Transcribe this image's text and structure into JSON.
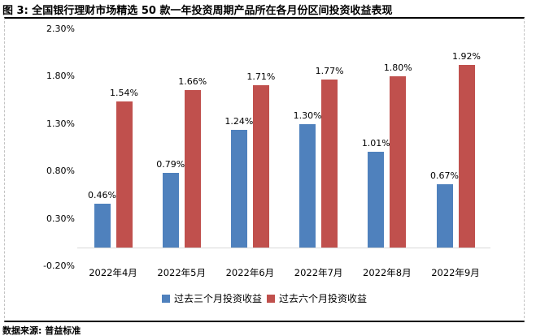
{
  "source": "数据来源: 普益标准",
  "colors": {
    "series_3m": "#4f81bd",
    "series_6m": "#c0504d",
    "baseline": "#d9d9d9",
    "frame_solid": "#000000",
    "frame_dashed": "#c3c3c3"
  },
  "chart_data": {
    "type": "bar",
    "title": "图 3: 全国银行理财市场精选 50 款一年投资周期产品所在各月份区间投资收益表现",
    "categories": [
      "2022年4月",
      "2022年5月",
      "2022年6月",
      "2022年7月",
      "2022年8月",
      "2022年9月"
    ],
    "series": [
      {
        "name": "过去三个月投资收益",
        "color": "#4f81bd",
        "values": [
          0.46,
          0.79,
          1.24,
          1.3,
          1.01,
          0.67
        ],
        "labels": [
          "0.46%",
          "0.79%",
          "1.24%",
          "1.30%",
          "1.01%",
          "0.67%"
        ]
      },
      {
        "name": "过去六个月投资收益",
        "color": "#c0504d",
        "values": [
          1.54,
          1.66,
          1.71,
          1.77,
          1.8,
          1.92
        ],
        "labels": [
          "1.54%",
          "1.66%",
          "1.71%",
          "1.77%",
          "1.80%",
          "1.92%"
        ]
      }
    ],
    "y_axis": {
      "ticks": [
        "2.30%",
        "1.80%",
        "1.30%",
        "0.80%",
        "0.30%",
        "-0.20%"
      ],
      "tick_values": [
        2.3,
        1.8,
        1.3,
        0.8,
        0.3,
        -0.2
      ],
      "min": -0.2,
      "max": 2.3,
      "format": "percent"
    },
    "baseline_value": 0,
    "grid": false,
    "legend_position": "bottom"
  }
}
